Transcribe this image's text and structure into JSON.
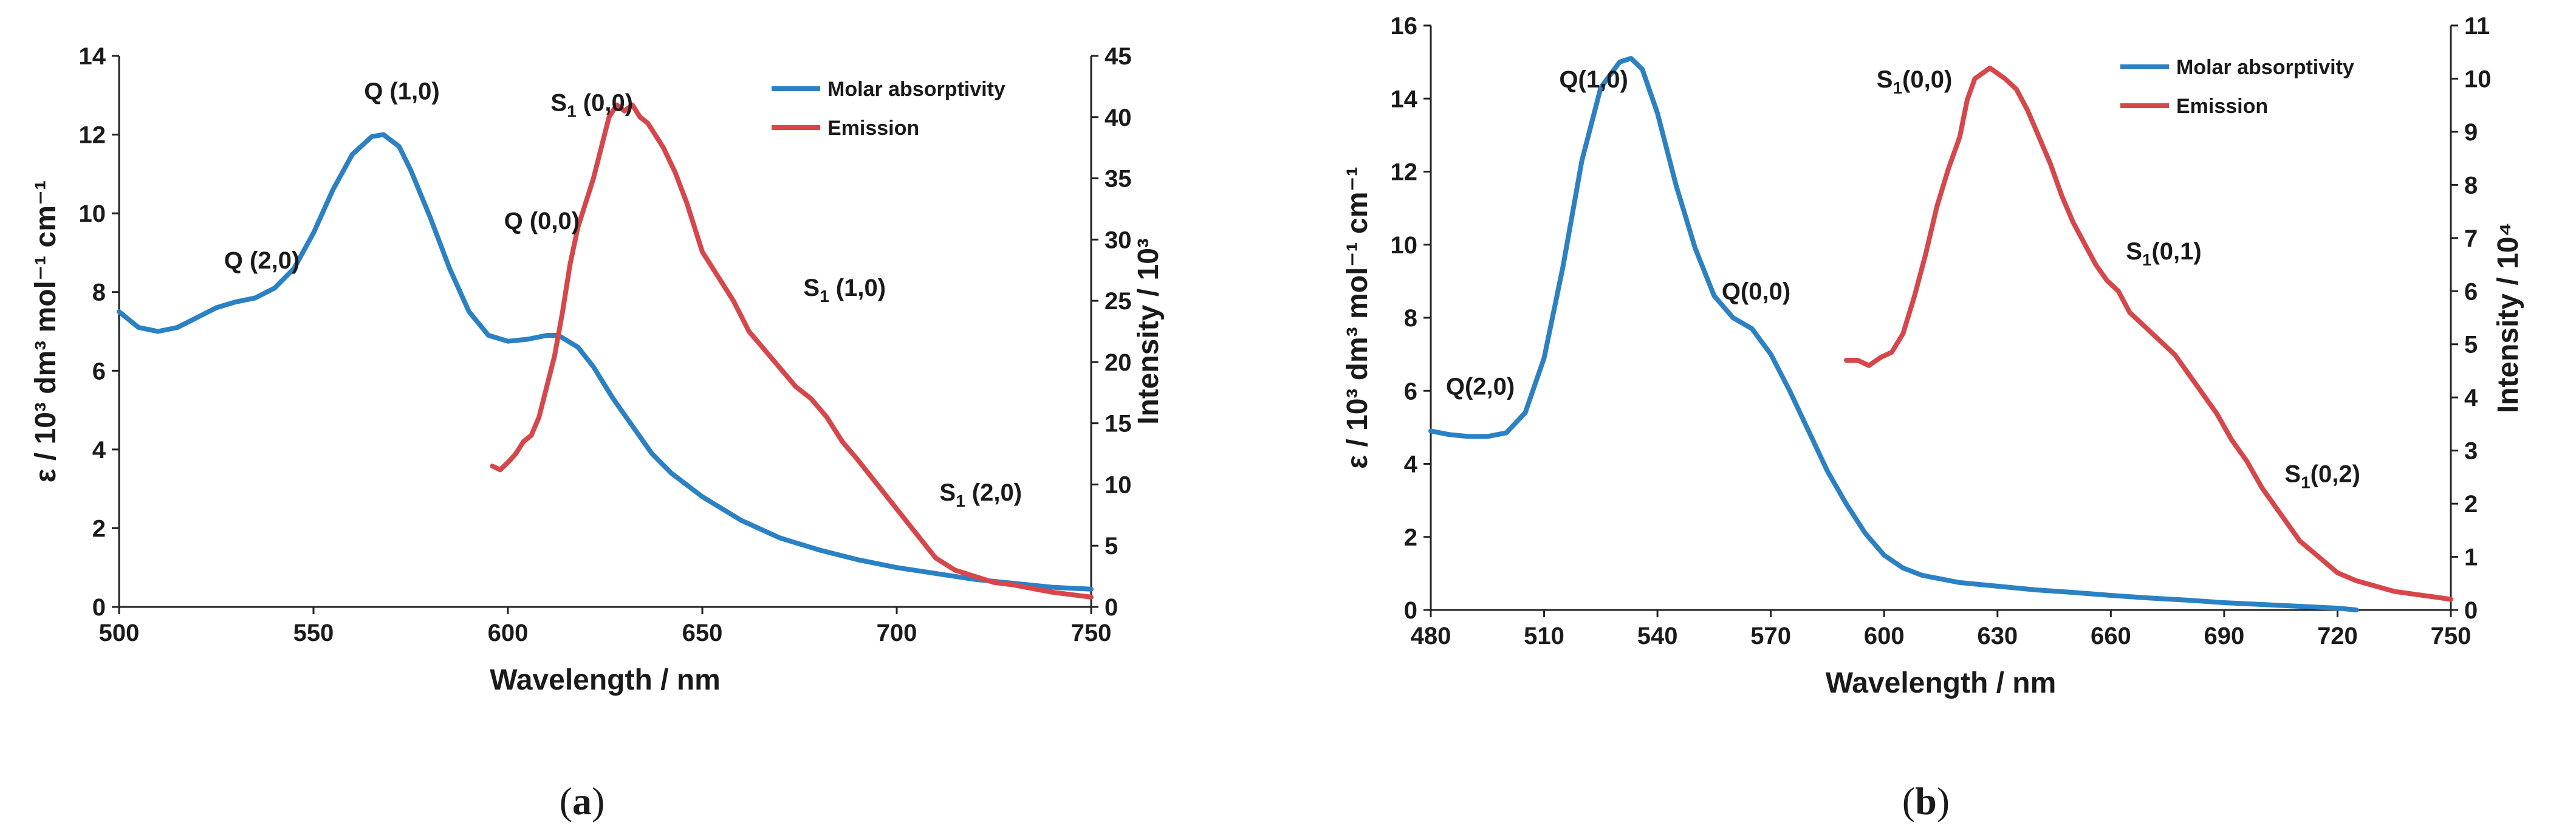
{
  "colors": {
    "absorptivity": "#2a82c4",
    "emission": "#d9464a",
    "axis": "#222222",
    "text": "#1a1a1a"
  },
  "chart_data": [
    {
      "panel": "a",
      "panel_label": "(a)",
      "type": "line",
      "xlabel": "Wavelength / nm",
      "ylabel_left": "ε / 10³ dm³ mol⁻¹ cm⁻¹",
      "ylabel_right": "Intensity / 10³",
      "xlim": [
        500,
        750
      ],
      "ylim_left": [
        0,
        14
      ],
      "ylim_right": [
        0,
        45
      ],
      "xticks": [
        500,
        550,
        600,
        650,
        700,
        750
      ],
      "yticks_left": [
        0,
        2,
        4,
        6,
        8,
        10,
        12,
        14
      ],
      "yticks_right": [
        0,
        5,
        10,
        15,
        20,
        25,
        30,
        35,
        40,
        45
      ],
      "legend": [
        "Molar absorptivity",
        "Emission"
      ],
      "series": [
        {
          "name": "Molar absorptivity",
          "axis": "left",
          "x": [
            500,
            505,
            510,
            515,
            520,
            525,
            530,
            535,
            540,
            545,
            550,
            555,
            560,
            565,
            568,
            572,
            575,
            580,
            585,
            590,
            595,
            600,
            605,
            610,
            613,
            618,
            622,
            627,
            632,
            637,
            642,
            650,
            660,
            670,
            680,
            690,
            700,
            710,
            720,
            730,
            740,
            750
          ],
          "y": [
            7.5,
            7.1,
            7.0,
            7.1,
            7.35,
            7.6,
            7.75,
            7.85,
            8.1,
            8.6,
            9.5,
            10.6,
            11.5,
            11.95,
            12.0,
            11.7,
            11.1,
            9.9,
            8.6,
            7.5,
            6.9,
            6.75,
            6.8,
            6.9,
            6.9,
            6.6,
            6.1,
            5.3,
            4.6,
            3.9,
            3.4,
            2.8,
            2.2,
            1.75,
            1.45,
            1.2,
            1.0,
            0.85,
            0.7,
            0.6,
            0.5,
            0.45
          ]
        },
        {
          "name": "Emission",
          "axis": "right",
          "x": [
            596,
            598,
            600,
            602,
            604,
            606,
            608,
            610,
            612,
            614,
            616,
            618,
            620,
            622,
            624,
            626,
            628,
            630,
            632,
            634,
            636,
            638,
            640,
            643,
            646,
            650,
            654,
            658,
            662,
            666,
            670,
            674,
            678,
            682,
            686,
            690,
            695,
            700,
            705,
            710,
            715,
            720,
            725,
            730,
            735,
            740,
            745,
            750
          ],
          "y": [
            11.5,
            11.2,
            11.8,
            12.5,
            13.5,
            14.0,
            15.5,
            18.0,
            20.5,
            24.0,
            28.0,
            31.0,
            33.0,
            35.0,
            37.5,
            40.0,
            41.0,
            40.5,
            41.0,
            40.0,
            39.5,
            38.5,
            37.5,
            35.5,
            33.0,
            29.0,
            27.0,
            25.0,
            22.5,
            21.0,
            19.5,
            18.0,
            17.0,
            15.5,
            13.5,
            12.0,
            10.0,
            8.0,
            6.0,
            4.0,
            3.0,
            2.5,
            2.0,
            1.8,
            1.5,
            1.2,
            1.0,
            0.8
          ]
        }
      ],
      "annotations": [
        {
          "text": "Q (2,0)",
          "x": 527,
          "y": 8.6,
          "axis": "left"
        },
        {
          "text": "Q (1,0)",
          "x": 563,
          "y": 12.9,
          "axis": "left"
        },
        {
          "text": "Q (0,0)",
          "x": 599,
          "y": 9.6,
          "axis": "left"
        },
        {
          "main": "S",
          "sub": "1",
          "rest": " (0,0)",
          "x": 611,
          "y": 12.6,
          "axis": "left"
        },
        {
          "main": "S",
          "sub": "1",
          "rest": " (1,0)",
          "x": 676,
          "y": 7.9,
          "axis": "left"
        },
        {
          "main": "S",
          "sub": "1",
          "rest": " (2,0)",
          "x": 711,
          "y": 2.7,
          "axis": "left"
        }
      ]
    },
    {
      "panel": "b",
      "panel_label": "(b)",
      "type": "line",
      "xlabel": "Wavelength / nm",
      "ylabel_left": "ε / 10³ dm³ mol⁻¹ cm⁻¹",
      "ylabel_right": "Intensity / 10⁴",
      "xlim": [
        480,
        750
      ],
      "ylim_left": [
        0,
        16
      ],
      "ylim_right": [
        0,
        11
      ],
      "xticks": [
        480,
        510,
        540,
        570,
        600,
        630,
        660,
        690,
        720,
        750
      ],
      "yticks_left": [
        0,
        2,
        4,
        6,
        8,
        10,
        12,
        14,
        16
      ],
      "yticks_right": [
        0,
        1,
        2,
        3,
        4,
        5,
        6,
        7,
        8,
        9,
        10,
        11
      ],
      "legend": [
        "Molar absorptivity",
        "Emission"
      ],
      "series": [
        {
          "name": "Molar absorptivity",
          "axis": "left",
          "x": [
            480,
            485,
            490,
            495,
            500,
            505,
            510,
            515,
            520,
            525,
            530,
            533,
            536,
            540,
            545,
            550,
            555,
            560,
            565,
            570,
            575,
            580,
            585,
            590,
            595,
            600,
            605,
            610,
            620,
            630,
            640,
            650,
            660,
            670,
            680,
            690,
            700,
            710,
            720,
            725
          ],
          "y": [
            4.9,
            4.8,
            4.75,
            4.75,
            4.85,
            5.4,
            6.9,
            9.4,
            12.3,
            14.3,
            15.0,
            15.1,
            14.8,
            13.6,
            11.6,
            9.9,
            8.6,
            8.0,
            7.7,
            7.0,
            6.0,
            4.9,
            3.8,
            2.9,
            2.1,
            1.5,
            1.15,
            0.95,
            0.75,
            0.65,
            0.55,
            0.48,
            0.4,
            0.33,
            0.27,
            0.2,
            0.15,
            0.1,
            0.05,
            0.0
          ]
        },
        {
          "name": "Emission",
          "axis": "right",
          "x": [
            590,
            593,
            596,
            599,
            602,
            605,
            608,
            611,
            614,
            617,
            620,
            622,
            624,
            626,
            628,
            630,
            632,
            635,
            638,
            641,
            644,
            647,
            650,
            653,
            656,
            659,
            662,
            665,
            668,
            671,
            674,
            677,
            680,
            684,
            688,
            692,
            696,
            700,
            705,
            710,
            715,
            720,
            725,
            730,
            735,
            740,
            745,
            750
          ],
          "y": [
            4.7,
            4.7,
            4.6,
            4.75,
            4.85,
            5.2,
            5.9,
            6.7,
            7.6,
            8.3,
            8.9,
            9.6,
            10.0,
            10.1,
            10.2,
            10.1,
            10.0,
            9.8,
            9.4,
            8.9,
            8.4,
            7.8,
            7.3,
            6.9,
            6.5,
            6.2,
            6.0,
            5.6,
            5.4,
            5.2,
            5.0,
            4.8,
            4.5,
            4.1,
            3.7,
            3.2,
            2.8,
            2.3,
            1.8,
            1.3,
            1.0,
            0.7,
            0.55,
            0.45,
            0.35,
            0.3,
            0.25,
            0.2
          ]
        }
      ],
      "annotations": [
        {
          "text": "Q(2,0)",
          "x": 484,
          "y": 5.9,
          "axis": "left"
        },
        {
          "text": "Q(1,0)",
          "x": 514,
          "y": 14.3,
          "axis": "left"
        },
        {
          "text": "Q(0,0)",
          "x": 557,
          "y": 8.5,
          "axis": "left"
        },
        {
          "main": "S",
          "sub": "1",
          "rest": "(0,0)",
          "x": 598,
          "y": 14.3,
          "axis": "left"
        },
        {
          "main": "S",
          "sub": "1",
          "rest": "(0,1)",
          "x": 664,
          "y": 9.6,
          "axis": "left"
        },
        {
          "main": "S",
          "sub": "1",
          "rest": "(0,2)",
          "x": 706,
          "y": 3.5,
          "axis": "left"
        }
      ]
    }
  ]
}
